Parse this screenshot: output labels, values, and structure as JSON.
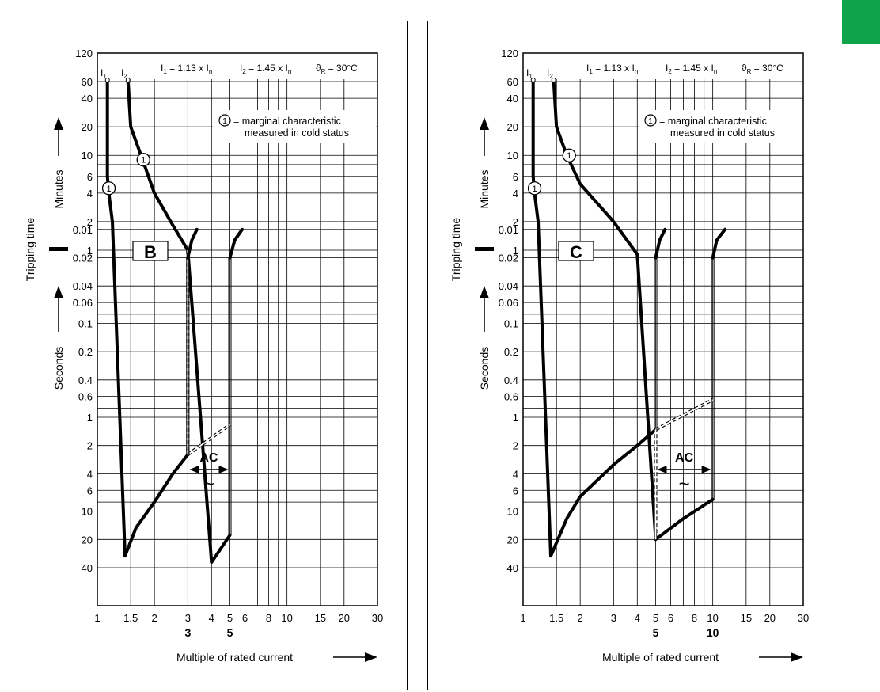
{
  "colors": {
    "accent": "#0fa34a",
    "curve": "#000000",
    "grid": "#000000"
  },
  "chart_data": [
    {
      "type": "line",
      "panel_label": "B",
      "ylabel": "Tripping time",
      "seconds_label": "Seconds",
      "minutes_label": "Minutes",
      "xlabel": "Multiple of rated current",
      "x_scale": "log",
      "xlim": [
        1,
        30
      ],
      "y_scale": "log",
      "ylim_seconds": [
        0.01,
        7200
      ],
      "grid": true,
      "x_ticks": [
        "1",
        "1.5",
        "2",
        "3",
        "4",
        "5",
        "6",
        "8",
        "10",
        "15",
        "20",
        "30"
      ],
      "x_bold_ticks": [
        "3",
        "5"
      ],
      "y_ticks_seconds": [
        "0.01",
        "0.02",
        "0.04",
        "0.06",
        "0.1",
        "0.2",
        "0.4",
        "0.6",
        "1",
        "2",
        "4",
        "6",
        "10",
        "20",
        "40"
      ],
      "y_ticks_minutes": [
        "1",
        "2",
        "4",
        "6",
        "10",
        "20",
        "40",
        "60",
        "120"
      ],
      "header": {
        "i1": "I",
        "i1_sub": "1",
        "i2": "I",
        "i2_sub": "2",
        "formula_i1": "I",
        "formula_i1_sub": "1",
        "formula_i1_rest": " = 1.13 x I",
        "formula_i1_n": "n",
        "formula_i2": "I",
        "formula_i2_sub": "2",
        "formula_i2_rest": " = 1.45 x I",
        "formula_i2_n": "n",
        "temp": "ϑ",
        "temp_sub": "R",
        "temp_rest": " = 30°C"
      },
      "legend_marker": "1",
      "legend_line1": "= marginal characteristic",
      "legend_line2": "measured in cold status",
      "ac_label": "AC",
      "ac_symbol": "~",
      "magnetic_range": [
        3,
        5
      ],
      "series": [
        {
          "role": "lower",
          "points": [
            [
              1.13,
              3600
            ],
            [
              1.13,
              360
            ],
            [
              1.15,
              240
            ],
            [
              1.2,
              120
            ],
            [
              1.4,
              30
            ],
            [
              1.6,
              15
            ],
            [
              2,
              8
            ],
            [
              2.5,
              4
            ],
            [
              3,
              2.5
            ]
          ]
        },
        {
          "role": "upper",
          "points": [
            [
              1.45,
              3600
            ],
            [
              1.5,
              1200
            ],
            [
              1.7,
              600
            ],
            [
              2,
              240
            ],
            [
              2.5,
              110
            ],
            [
              3,
              60
            ],
            [
              4,
              35
            ],
            [
              5,
              18
            ]
          ]
        },
        {
          "role": "lower-dashed",
          "points": [
            [
              3,
              2.5
            ],
            [
              5,
              1.2
            ]
          ]
        },
        {
          "role": "upper-dashed",
          "points": [
            [
              3,
              60
            ],
            [
              3,
              2.5
            ]
          ]
        },
        {
          "role": "instant-left",
          "points": [
            [
              3,
              0.02
            ],
            [
              3.15,
              0.013
            ],
            [
              3.35,
              0.01
            ]
          ]
        },
        {
          "role": "instant-right",
          "points": [
            [
              5,
              0.02
            ],
            [
              5.3,
              0.013
            ],
            [
              5.8,
              0.01
            ]
          ]
        }
      ],
      "markers": [
        [
          1.15,
          270
        ],
        [
          1.75,
          540
        ]
      ]
    },
    {
      "type": "line",
      "panel_label": "C",
      "ylabel": "Tripping time",
      "seconds_label": "Seconds",
      "minutes_label": "Minutes",
      "xlabel": "Multiple of rated current",
      "x_scale": "log",
      "xlim": [
        1,
        30
      ],
      "y_scale": "log",
      "ylim_seconds": [
        0.01,
        7200
      ],
      "grid": true,
      "x_ticks": [
        "1",
        "1.5",
        "2",
        "3",
        "4",
        "5",
        "6",
        "8",
        "10",
        "15",
        "20",
        "30"
      ],
      "x_bold_ticks": [
        "5",
        "10"
      ],
      "y_ticks_seconds": [
        "0.01",
        "0.02",
        "0.04",
        "0.06",
        "0.1",
        "0.2",
        "0.4",
        "0.6",
        "1",
        "2",
        "4",
        "6",
        "10",
        "20",
        "40"
      ],
      "y_ticks_minutes": [
        "1",
        "2",
        "4",
        "6",
        "10",
        "20",
        "40",
        "60",
        "120"
      ],
      "header": {
        "i1": "I",
        "i1_sub": "1",
        "i2": "I",
        "i2_sub": "2",
        "formula_i1": "I",
        "formula_i1_sub": "1",
        "formula_i1_rest": " = 1.13 x I",
        "formula_i1_n": "n",
        "formula_i2": "I",
        "formula_i2_sub": "2",
        "formula_i2_rest": " = 1.45 x I",
        "formula_i2_n": "n",
        "temp": "ϑ",
        "temp_sub": "R",
        "temp_rest": " = 30°C"
      },
      "legend_marker": "1",
      "legend_line1": "= marginal characteristic",
      "legend_line2": "measured in cold status",
      "ac_label": "AC",
      "ac_symbol": "~",
      "magnetic_range": [
        5,
        10
      ],
      "series": [
        {
          "role": "lower",
          "points": [
            [
              1.13,
              3600
            ],
            [
              1.13,
              360
            ],
            [
              1.15,
              240
            ],
            [
              1.2,
              120
            ],
            [
              1.4,
              30
            ],
            [
              1.7,
              12
            ],
            [
              2,
              7
            ],
            [
              3,
              3.2
            ],
            [
              4,
              2
            ],
            [
              5,
              1.35
            ]
          ]
        },
        {
          "role": "upper",
          "points": [
            [
              1.45,
              3600
            ],
            [
              1.5,
              1200
            ],
            [
              1.7,
              600
            ],
            [
              2,
              300
            ],
            [
              3,
              120
            ],
            [
              4,
              55
            ],
            [
              5,
              20
            ],
            [
              7,
              12
            ],
            [
              10,
              7.5
            ]
          ]
        },
        {
          "role": "lower-dashed",
          "points": [
            [
              5,
              1.35
            ],
            [
              10,
              0.65
            ]
          ]
        },
        {
          "role": "upper-dashed",
          "points": [
            [
              5,
              20
            ],
            [
              5,
              1.35
            ]
          ]
        },
        {
          "role": "instant-left",
          "points": [
            [
              5,
              0.02
            ],
            [
              5.25,
              0.013
            ],
            [
              5.6,
              0.01
            ]
          ]
        },
        {
          "role": "instant-right",
          "points": [
            [
              10,
              0.02
            ],
            [
              10.5,
              0.013
            ],
            [
              11.6,
              0.01
            ]
          ]
        }
      ],
      "markers": [
        [
          1.15,
          270
        ],
        [
          1.75,
          600
        ]
      ]
    }
  ]
}
